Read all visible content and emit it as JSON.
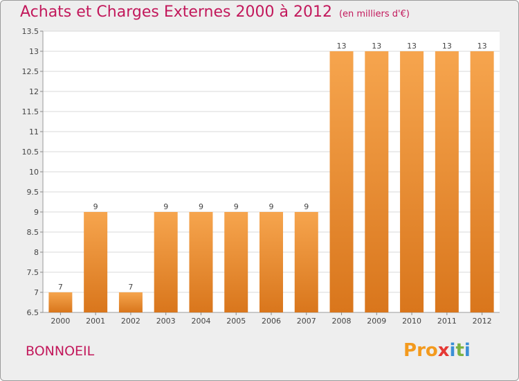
{
  "title": "Achats et Charges Externes 2000 à 2012",
  "subtitle": "(en milliers d'€)",
  "place_name": "BONNOEIL",
  "logo": {
    "text": "Proxiti",
    "colors": [
      "#f39a1e",
      "#3a8fd6",
      "#e53935",
      "#7cb342"
    ]
  },
  "colors": {
    "bar_top": "#f6a54e",
    "bar_bottom": "#d9761c",
    "title": "#c2185b",
    "background": "#eeeeee",
    "plot_bg": "#ffffff",
    "grid": "#d9d9d9"
  },
  "chart_data": {
    "type": "bar",
    "title": "Achats et Charges Externes 2000 à 2012",
    "subtitle": "(en milliers d'€)",
    "categories": [
      "2000",
      "2001",
      "2002",
      "2003",
      "2004",
      "2005",
      "2006",
      "2007",
      "2008",
      "2009",
      "2010",
      "2011",
      "2012"
    ],
    "values": [
      7,
      9,
      7,
      9,
      9,
      9,
      9,
      9,
      13,
      13,
      13,
      13,
      13
    ],
    "data_labels": [
      "7",
      "9",
      "7",
      "9",
      "9",
      "9",
      "9",
      "9",
      "13",
      "13",
      "13",
      "13",
      "13"
    ],
    "ylim": [
      6.5,
      13.5
    ],
    "yticks": [
      6.5,
      7,
      7.5,
      8,
      8.5,
      9,
      9.5,
      10,
      10.5,
      11,
      11.5,
      12,
      12.5,
      13,
      13.5
    ],
    "ytick_labels": [
      "6.5",
      "7",
      "7.5",
      "8",
      "8.5",
      "9",
      "9.5",
      "10",
      "10.5",
      "11",
      "11.5",
      "12",
      "12.5",
      "13",
      "13.5"
    ],
    "grid": true,
    "legend": "none"
  }
}
